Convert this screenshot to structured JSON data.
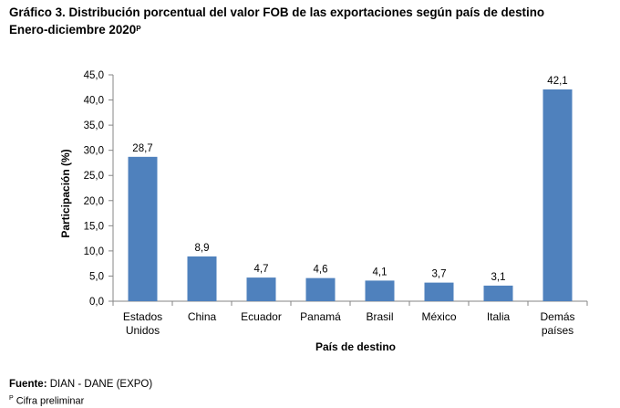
{
  "title_line1": "Gráfico 3. Distribución porcentual del valor FOB de las exportaciones según país de destino",
  "title_line2": "Enero-diciembre 2020",
  "title_sup": "P",
  "source_label": "Fuente:",
  "source_text": " DIAN - DANE (EXPO)",
  "note_sup": "P",
  "note_text": " Cifra preliminar",
  "colors": {
    "bar": "#4F81BD",
    "axis": "#868686"
  },
  "chart_data": {
    "type": "bar",
    "categories": [
      [
        "Estados",
        "Unidos"
      ],
      [
        "China"
      ],
      [
        "Ecuador"
      ],
      [
        "Panamá"
      ],
      [
        "Brasil"
      ],
      [
        "México"
      ],
      [
        "Italia"
      ],
      [
        "Demás",
        "países"
      ]
    ],
    "values": [
      28.7,
      8.9,
      4.7,
      4.6,
      4.1,
      3.7,
      3.1,
      42.1
    ],
    "value_labels": [
      "28,7",
      "8,9",
      "4,7",
      "4,6",
      "4,1",
      "3,7",
      "3,1",
      "42,1"
    ],
    "ylim": [
      0,
      45
    ],
    "yticks": [
      "0,0",
      "5,0",
      "10,0",
      "15,0",
      "20,0",
      "25,0",
      "30,0",
      "35,0",
      "40,0",
      "45,0"
    ],
    "xlabel": "País de destino",
    "ylabel": "Participación (%)",
    "grid": false
  }
}
